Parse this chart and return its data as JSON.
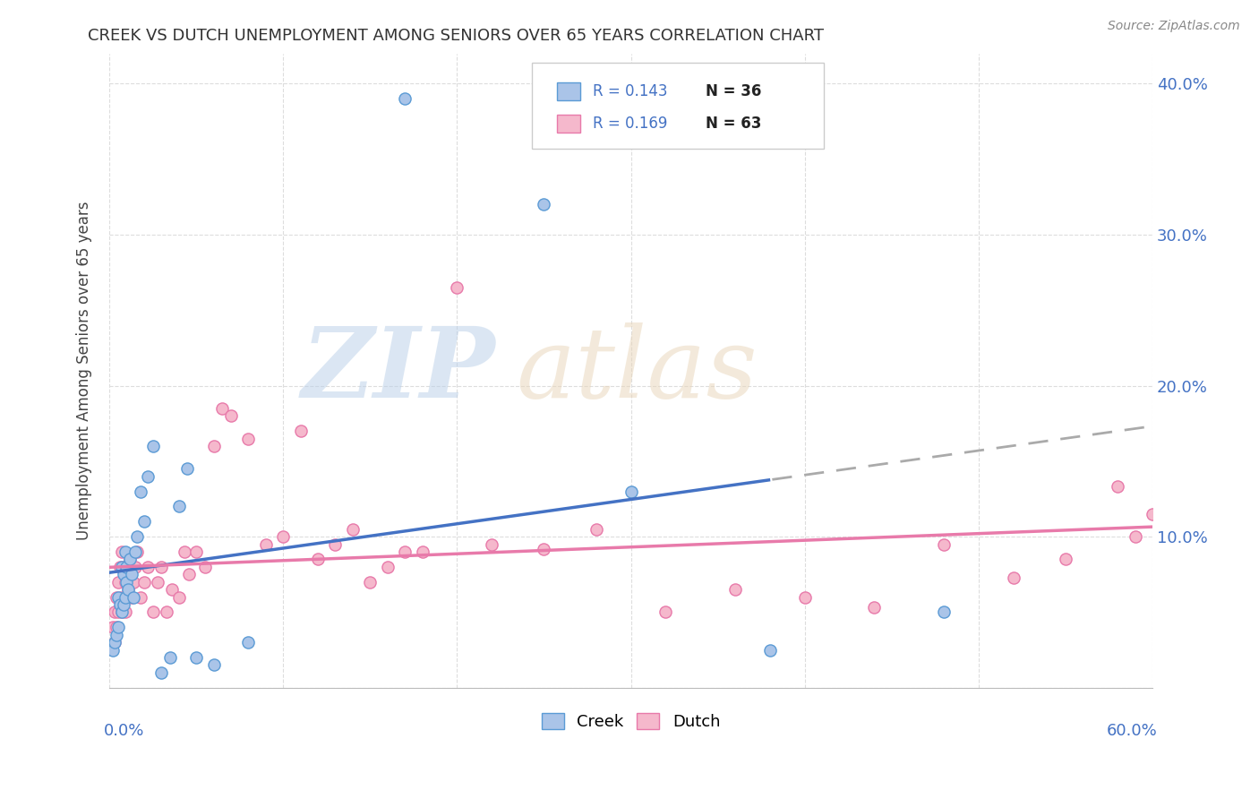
{
  "title": "CREEK VS DUTCH UNEMPLOYMENT AMONG SENIORS OVER 65 YEARS CORRELATION CHART",
  "source": "Source: ZipAtlas.com",
  "ylabel": "Unemployment Among Seniors over 65 years",
  "xlim": [
    0,
    0.6
  ],
  "ylim": [
    0,
    0.42
  ],
  "yticks": [
    0.0,
    0.1,
    0.2,
    0.3,
    0.4
  ],
  "ytick_labels": [
    "",
    "10.0%",
    "20.0%",
    "30.0%",
    "40.0%"
  ],
  "creek_color": "#aac4e8",
  "dutch_color": "#f5b8cc",
  "creek_edge_color": "#5b9bd5",
  "dutch_edge_color": "#e87aaa",
  "creek_line_color": "#4472c4",
  "dutch_line_color": "#e87aaa",
  "legend_value_color": "#4472c4",
  "legend_n_color": "#222222",
  "creek_R": 0.143,
  "creek_N": 36,
  "dutch_R": 0.169,
  "dutch_N": 63,
  "creek_x": [
    0.002,
    0.003,
    0.004,
    0.005,
    0.005,
    0.006,
    0.007,
    0.007,
    0.008,
    0.008,
    0.009,
    0.009,
    0.01,
    0.01,
    0.011,
    0.012,
    0.013,
    0.014,
    0.015,
    0.016,
    0.018,
    0.02,
    0.022,
    0.025,
    0.03,
    0.035,
    0.04,
    0.045,
    0.05,
    0.06,
    0.08,
    0.17,
    0.25,
    0.3,
    0.38,
    0.48
  ],
  "creek_y": [
    0.025,
    0.03,
    0.035,
    0.04,
    0.06,
    0.055,
    0.05,
    0.08,
    0.055,
    0.075,
    0.06,
    0.09,
    0.07,
    0.08,
    0.065,
    0.085,
    0.075,
    0.06,
    0.09,
    0.1,
    0.13,
    0.11,
    0.14,
    0.16,
    0.01,
    0.02,
    0.12,
    0.145,
    0.02,
    0.015,
    0.03,
    0.39,
    0.32,
    0.13,
    0.025,
    0.05
  ],
  "dutch_x": [
    0.002,
    0.003,
    0.003,
    0.004,
    0.004,
    0.005,
    0.005,
    0.006,
    0.006,
    0.007,
    0.007,
    0.008,
    0.008,
    0.009,
    0.009,
    0.01,
    0.011,
    0.012,
    0.013,
    0.014,
    0.015,
    0.016,
    0.018,
    0.02,
    0.022,
    0.025,
    0.028,
    0.03,
    0.033,
    0.036,
    0.04,
    0.043,
    0.046,
    0.05,
    0.055,
    0.06,
    0.065,
    0.07,
    0.08,
    0.09,
    0.1,
    0.11,
    0.12,
    0.13,
    0.14,
    0.15,
    0.16,
    0.17,
    0.18,
    0.2,
    0.22,
    0.25,
    0.28,
    0.32,
    0.36,
    0.4,
    0.44,
    0.48,
    0.52,
    0.55,
    0.58,
    0.59,
    0.6
  ],
  "dutch_y": [
    0.04,
    0.05,
    0.03,
    0.04,
    0.06,
    0.05,
    0.07,
    0.06,
    0.08,
    0.05,
    0.09,
    0.06,
    0.08,
    0.05,
    0.07,
    0.075,
    0.065,
    0.085,
    0.06,
    0.07,
    0.08,
    0.09,
    0.06,
    0.07,
    0.08,
    0.05,
    0.07,
    0.08,
    0.05,
    0.065,
    0.06,
    0.09,
    0.075,
    0.09,
    0.08,
    0.16,
    0.185,
    0.18,
    0.165,
    0.095,
    0.1,
    0.17,
    0.085,
    0.095,
    0.105,
    0.07,
    0.08,
    0.09,
    0.09,
    0.265,
    0.095,
    0.092,
    0.105,
    0.05,
    0.065,
    0.06,
    0.053,
    0.095,
    0.073,
    0.085,
    0.133,
    0.1,
    0.115
  ]
}
